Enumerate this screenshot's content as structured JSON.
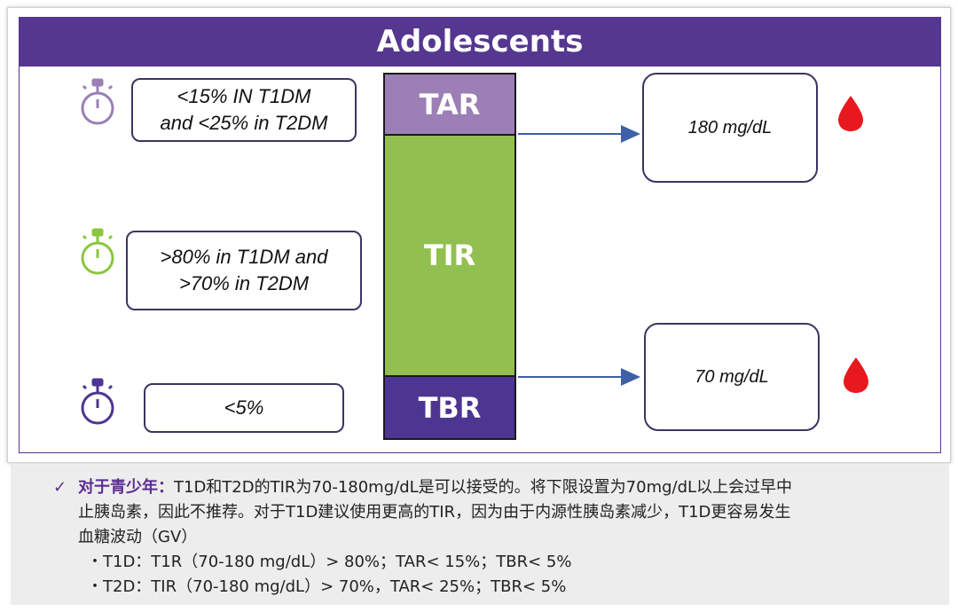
{
  "diagram": {
    "title": "Adolescents",
    "bar": {
      "segments": [
        {
          "label": "TAR",
          "color": "#9b7fb6"
        },
        {
          "label": "TIR",
          "color": "#92c050"
        },
        {
          "label": "TBR",
          "color": "#4d3592"
        }
      ]
    },
    "targets": [
      {
        "text": "<15% IN T1DM\nand <25% in T2DM",
        "icon": "stopwatch-icon",
        "icon_color": "#9b7fb6"
      },
      {
        "text": ">80% in T1DM and\n>70% in T2DM",
        "icon": "stopwatch-icon",
        "icon_color": "#8cc63f"
      },
      {
        "text": "<5%",
        "icon": "stopwatch-icon",
        "icon_color": "#4d3592"
      }
    ],
    "thresholds": [
      {
        "text": "180 mg/dL",
        "icon": "blood-drop-icon"
      },
      {
        "text": "70 mg/dL",
        "icon": "blood-drop-icon"
      }
    ],
    "colors": {
      "header": "#55378f",
      "drop": "#e8191e",
      "arrow": "#3f5fa8"
    }
  },
  "caption": {
    "check_icon": "✓",
    "lead": "对于青少年：",
    "line1_rest": "T1D和T2D的TIR为70-180mg/dL是可以接受的。将下限设置为70mg/dL以上会过早中",
    "line2": "止胰岛素，因此不推荐。对于T1D建议使用更高的TIR，因为由于内源性胰岛素减少，T1D更容易发生",
    "line3": "血糖波动（GV）",
    "bullets": [
      "・T1D：T1R（70-180 mg/dL）> 80%；TAR< 15%；TBR< 5%",
      "・T2D：TIR（70-180 mg/dL）> 70%，TAR< 25%；TBR< 5%"
    ]
  }
}
